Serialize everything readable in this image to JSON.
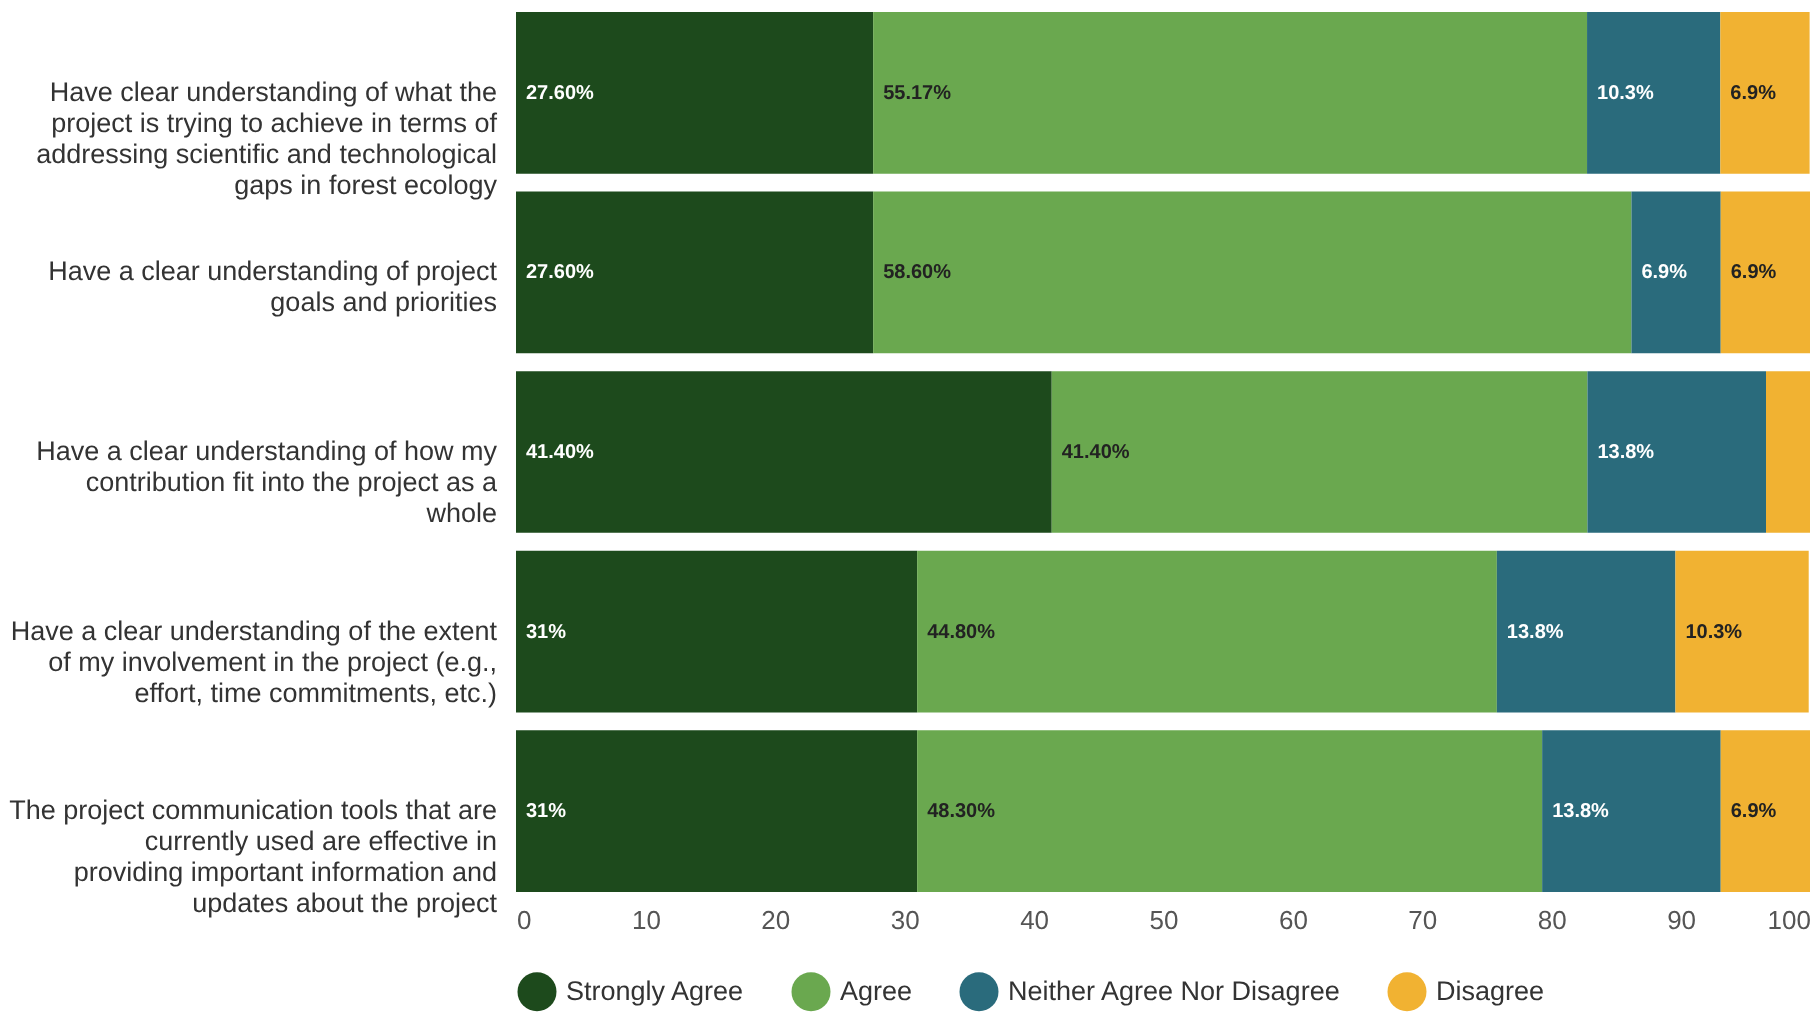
{
  "chart_data": {
    "type": "bar",
    "orientation": "horizontal",
    "stacked": true,
    "categories": [
      "Have clear understanding of what the project is trying to achieve in terms of addressing scientific and technological gaps in forest ecology",
      "Have a clear understanding of project goals and priorities",
      "Have a clear understanding of how my contribution fit into the project as a whole",
      "Have a clear understanding of the extent of my involvement in the project (e.g., effort, time commitments, etc.)",
      "The project communication tools that are currently used are effective in providing important information and updates about the project"
    ],
    "series": [
      {
        "name": "Strongly Agree",
        "color": "#1d4a1c",
        "values": [
          27.6,
          27.6,
          41.4,
          31,
          31
        ],
        "value_labels": [
          "27.60%",
          "27.60%",
          "41.40%",
          "31%",
          "31%"
        ]
      },
      {
        "name": "Agree",
        "color": "#6aa84f",
        "values": [
          55.17,
          58.6,
          41.4,
          44.8,
          48.3
        ],
        "value_labels": [
          "55.17%",
          "58.60%",
          "41.40%",
          "44.80%",
          "48.30%"
        ]
      },
      {
        "name": "Neither Agree Nor Disagree",
        "color": "#2a6b7c",
        "values": [
          10.3,
          6.9,
          13.8,
          13.8,
          13.8
        ],
        "value_labels": [
          "10.3%",
          "6.9%",
          "13.8%",
          "13.8%",
          "13.8%"
        ]
      },
      {
        "name": "Disagree",
        "color": "#f1b232",
        "values": [
          6.9,
          6.9,
          3.4,
          10.3,
          6.9
        ],
        "value_labels": [
          "6.9%",
          "6.9%",
          null,
          "10.3%",
          "6.9%"
        ]
      }
    ],
    "xlim": [
      0,
      100
    ],
    "xticks": [
      0,
      10,
      20,
      30,
      40,
      50,
      60,
      70,
      80,
      90,
      100
    ],
    "grid": false,
    "legend": "bottom"
  }
}
